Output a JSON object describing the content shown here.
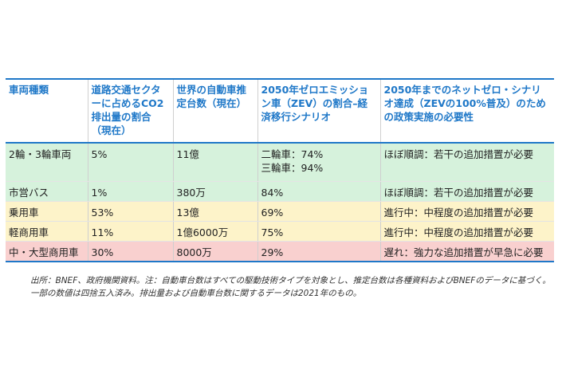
{
  "table": {
    "headers": [
      "車両種類",
      "道路交通セクターに占めるCO2排出量の割合（現在）",
      "世界の自動車推定台数（現在）",
      "2050年ゼロエミッション車（ZEV）の割合–経済移行シナリオ",
      "2050年までのネットゼロ・シナリオ達成（ZEVの100%普及）のための政策実施の必要性"
    ],
    "rows": [
      {
        "type": "2輪・3輪車両",
        "co2_share": "5%",
        "fleet": "11億",
        "zev_line1": "二輪車：74%",
        "zev_line2": "三輪車：94%",
        "policy": "ほぼ順調：若干の追加措置が必要",
        "color": "#d6f2dc"
      },
      {
        "type": "市営バス",
        "co2_share": "1%",
        "fleet": "380万",
        "zev_line1": "84%",
        "zev_line2": "",
        "policy": "ほぼ順調：若干の追加措置が必要",
        "color": "#d6f2dc"
      },
      {
        "type": "乗用車",
        "co2_share": "53%",
        "fleet": "13億",
        "zev_line1": "69%",
        "zev_line2": "",
        "policy": "進行中：中程度の追加措置が必要",
        "color": "#fdf3c9"
      },
      {
        "type": "軽商用車",
        "co2_share": "11%",
        "fleet": "1億6000万",
        "zev_line1": "75%",
        "zev_line2": "",
        "policy": "進行中：中程度の追加措置が必要",
        "color": "#fdf3c9"
      },
      {
        "type": "中・大型商用車",
        "co2_share": "30%",
        "fleet": "8000万",
        "zev_line1": "29%",
        "zev_line2": "",
        "policy": "遅れ：強力な追加措置が早急に必要",
        "color": "#f9d0cf"
      }
    ]
  },
  "footnote": {
    "line1": "出所：BNEF、政府機関資料。注：自動車台数はすべての駆動技術タイプを対象とし、推定台数は各種資料およびBNEFのデータに基づく。",
    "line2": "一部の数値は四捨五入済み。排出量および自動車台数に関するデータは2021年のもの。"
  },
  "colors": {
    "header_text": "#1f78c8",
    "rule": "#1f78c8",
    "green": "#d6f2dc",
    "yellow": "#fdf3c9",
    "red": "#f9d0cf"
  }
}
